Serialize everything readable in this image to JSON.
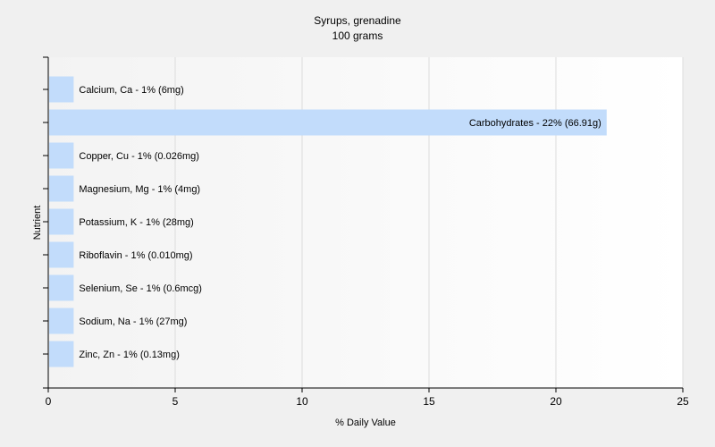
{
  "chart_data": {
    "type": "bar",
    "orientation": "horizontal",
    "title": "Syrups, grenadine",
    "subtitle": "100 grams",
    "xlabel": "% Daily Value",
    "ylabel": "Nutrient",
    "xlim": [
      0,
      25
    ],
    "xticks": [
      "0",
      "5",
      "10",
      "15",
      "20",
      "25"
    ],
    "grid": true,
    "bar_color": "#c2dcfb",
    "categories": [
      "Calcium, Ca",
      "Carbohydrates",
      "Copper, Cu",
      "Magnesium, Mg",
      "Potassium, K",
      "Riboflavin",
      "Selenium, Se",
      "Sodium, Na",
      "Zinc, Zn"
    ],
    "values": [
      1,
      22,
      1,
      1,
      1,
      1,
      1,
      1,
      1
    ],
    "labels": [
      "Calcium, Ca - 1% (6mg)",
      "Carbohydrates - 22% (66.91g)",
      "Copper, Cu - 1% (0.026mg)",
      "Magnesium, Mg - 1% (4mg)",
      "Potassium, K - 1% (28mg)",
      "Riboflavin - 1% (0.010mg)",
      "Selenium, Se - 1% (0.6mcg)",
      "Sodium, Na - 1% (27mg)",
      "Zinc, Zn - 1% (0.13mg)"
    ]
  }
}
